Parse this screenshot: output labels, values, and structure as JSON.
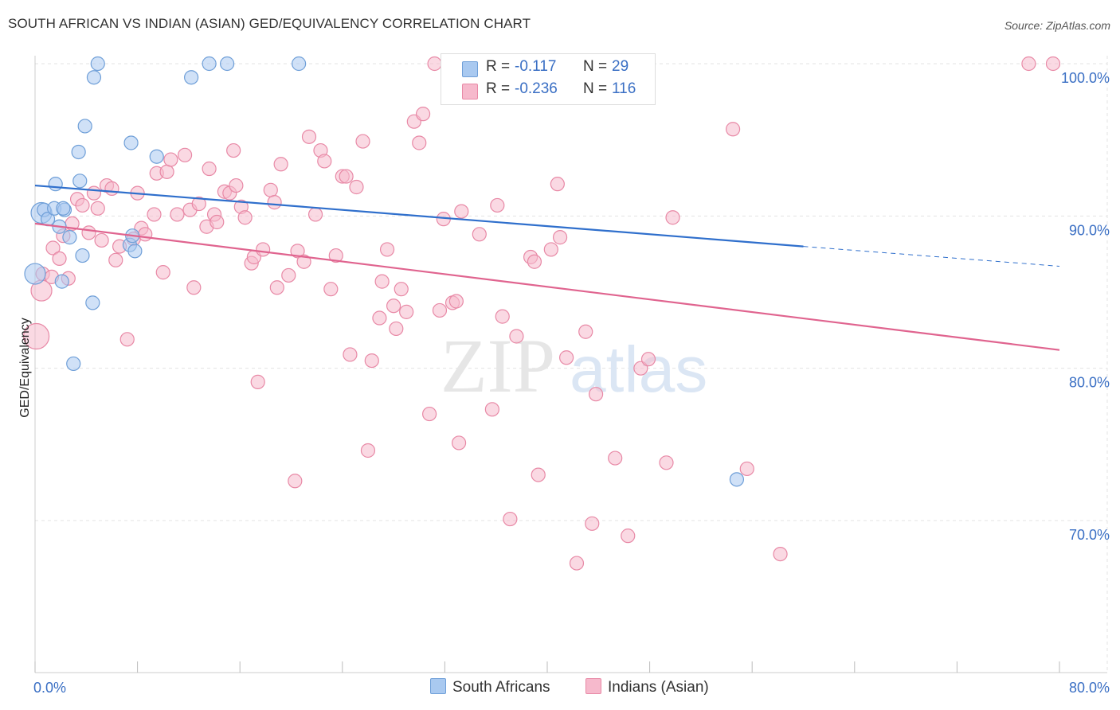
{
  "title": "SOUTH AFRICAN VS INDIAN (ASIAN) GED/EQUIVALENCY CORRELATION CHART",
  "source": "Source: ZipAtlas.com",
  "watermark": {
    "zip": "ZIP",
    "atlas": "atlas"
  },
  "legend": {
    "rows": [
      {
        "r_label": "R =",
        "r_value": "-0.117",
        "n_label": "N =",
        "n_value": "29"
      },
      {
        "r_label": "R =",
        "r_value": "-0.236",
        "n_label": "N =",
        "n_value": "116"
      }
    ]
  },
  "bottom_legend": {
    "south_africans": "South Africans",
    "indians": "Indians (Asian)"
  },
  "colors": {
    "blue_fill": "#a9c9f0",
    "blue_stroke": "#6f9fd8",
    "blue_line": "#2f6fcc",
    "pink_fill": "#f6b9cc",
    "pink_stroke": "#e889a6",
    "pink_line": "#e0648f",
    "axis_text": "#3a6fc4",
    "grid": "#e3e3e3"
  },
  "chart_data": {
    "type": "scatter",
    "title": "SOUTH AFRICAN VS INDIAN (ASIAN) GED/EQUIVALENCY CORRELATION CHART",
    "xlabel": "",
    "ylabel": "GED/Equivalency",
    "xlim": [
      0,
      80
    ],
    "ylim": [
      60,
      101.5
    ],
    "x_tick_labels": [
      "0.0%",
      "80.0%"
    ],
    "y_ticks": [
      70,
      80,
      90,
      100
    ],
    "y_tick_labels": [
      "70.0%",
      "80.0%",
      "90.0%",
      "100.0%"
    ],
    "grid": true,
    "legend_position": "top-center",
    "series": [
      {
        "name": "South Africans",
        "color": "#a9c9f0",
        "r": -0.117,
        "n": 29,
        "trend": {
          "x": [
            0,
            60
          ],
          "y": [
            92.0,
            88.0
          ],
          "dashed_extension_to_x": 80,
          "dashed_end_y": 86.7
        },
        "points": [
          [
            0.0,
            86.2
          ],
          [
            0.5,
            90.2
          ],
          [
            0.7,
            90.4
          ],
          [
            1.0,
            89.8
          ],
          [
            1.5,
            90.5
          ],
          [
            1.6,
            92.1
          ],
          [
            1.9,
            89.3
          ],
          [
            2.1,
            85.7
          ],
          [
            2.3,
            90.4
          ],
          [
            2.7,
            88.6
          ],
          [
            3.4,
            94.2
          ],
          [
            3.5,
            92.3
          ],
          [
            3.7,
            87.4
          ],
          [
            3.9,
            95.9
          ],
          [
            4.5,
            84.3
          ],
          [
            4.6,
            99.1
          ],
          [
            4.9,
            100.0
          ],
          [
            7.4,
            88.1
          ],
          [
            7.5,
            94.8
          ],
          [
            7.6,
            88.7
          ],
          [
            7.8,
            87.7
          ],
          [
            9.5,
            93.9
          ],
          [
            12.2,
            99.1
          ],
          [
            13.6,
            100.0
          ],
          [
            15.0,
            100.0
          ],
          [
            20.6,
            100.0
          ],
          [
            54.8,
            72.7
          ],
          [
            3.0,
            80.3
          ],
          [
            2.2,
            90.5
          ]
        ]
      },
      {
        "name": "Indians (Asian)",
        "color": "#f6b9cc",
        "r": -0.236,
        "n": 116,
        "trend": {
          "x": [
            0,
            80
          ],
          "y": [
            89.5,
            81.2
          ]
        },
        "points": [
          [
            0.1,
            82.1
          ],
          [
            0.5,
            85.1
          ],
          [
            0.6,
            86.2
          ],
          [
            1.3,
            86.0
          ],
          [
            1.4,
            87.9
          ],
          [
            1.9,
            87.2
          ],
          [
            2.2,
            88.7
          ],
          [
            2.6,
            85.9
          ],
          [
            2.9,
            89.5
          ],
          [
            3.3,
            91.1
          ],
          [
            3.7,
            90.7
          ],
          [
            4.2,
            88.9
          ],
          [
            4.6,
            91.5
          ],
          [
            4.9,
            90.5
          ],
          [
            5.2,
            88.4
          ],
          [
            5.6,
            92.0
          ],
          [
            6.0,
            91.8
          ],
          [
            6.3,
            87.1
          ],
          [
            6.6,
            88.0
          ],
          [
            7.2,
            81.9
          ],
          [
            7.7,
            88.5
          ],
          [
            8.0,
            91.5
          ],
          [
            8.3,
            89.2
          ],
          [
            8.6,
            88.8
          ],
          [
            9.3,
            90.1
          ],
          [
            9.5,
            92.8
          ],
          [
            10.0,
            86.3
          ],
          [
            10.3,
            92.9
          ],
          [
            10.6,
            93.7
          ],
          [
            11.1,
            90.1
          ],
          [
            11.7,
            94.0
          ],
          [
            12.1,
            90.4
          ],
          [
            12.4,
            85.3
          ],
          [
            12.8,
            90.8
          ],
          [
            13.4,
            89.3
          ],
          [
            13.6,
            93.1
          ],
          [
            14.0,
            90.1
          ],
          [
            14.2,
            89.6
          ],
          [
            14.8,
            91.6
          ],
          [
            15.2,
            91.5
          ],
          [
            15.5,
            94.3
          ],
          [
            15.7,
            92.0
          ],
          [
            16.1,
            90.6
          ],
          [
            16.4,
            89.9
          ],
          [
            16.9,
            86.9
          ],
          [
            17.1,
            87.3
          ],
          [
            17.4,
            79.1
          ],
          [
            17.8,
            87.8
          ],
          [
            18.4,
            91.7
          ],
          [
            18.7,
            90.9
          ],
          [
            18.9,
            85.3
          ],
          [
            19.2,
            93.4
          ],
          [
            19.8,
            86.1
          ],
          [
            20.3,
            72.6
          ],
          [
            20.5,
            87.7
          ],
          [
            21.0,
            87.0
          ],
          [
            21.4,
            95.2
          ],
          [
            21.9,
            90.1
          ],
          [
            22.3,
            94.3
          ],
          [
            22.6,
            93.6
          ],
          [
            23.1,
            85.2
          ],
          [
            23.5,
            87.4
          ],
          [
            24.0,
            92.6
          ],
          [
            24.3,
            92.6
          ],
          [
            24.6,
            80.9
          ],
          [
            25.1,
            91.9
          ],
          [
            25.6,
            94.9
          ],
          [
            26.0,
            74.6
          ],
          [
            26.3,
            80.5
          ],
          [
            26.9,
            83.3
          ],
          [
            27.1,
            85.7
          ],
          [
            27.5,
            87.8
          ],
          [
            28.0,
            84.1
          ],
          [
            28.2,
            82.6
          ],
          [
            28.6,
            85.2
          ],
          [
            29.0,
            83.7
          ],
          [
            29.6,
            96.2
          ],
          [
            30.0,
            94.8
          ],
          [
            30.3,
            96.7
          ],
          [
            30.8,
            77.0
          ],
          [
            31.2,
            100.0
          ],
          [
            31.6,
            83.8
          ],
          [
            31.9,
            89.8
          ],
          [
            32.6,
            84.3
          ],
          [
            32.9,
            84.4
          ],
          [
            33.1,
            75.1
          ],
          [
            33.3,
            90.3
          ],
          [
            34.7,
            88.8
          ],
          [
            35.7,
            77.3
          ],
          [
            36.1,
            90.7
          ],
          [
            36.5,
            83.4
          ],
          [
            37.1,
            70.1
          ],
          [
            37.6,
            82.1
          ],
          [
            38.7,
            87.3
          ],
          [
            39.0,
            87.0
          ],
          [
            39.3,
            73.0
          ],
          [
            40.3,
            87.8
          ],
          [
            40.8,
            92.1
          ],
          [
            41.0,
            88.6
          ],
          [
            41.5,
            80.7
          ],
          [
            42.3,
            67.2
          ],
          [
            43.0,
            82.4
          ],
          [
            43.5,
            69.8
          ],
          [
            43.8,
            78.3
          ],
          [
            45.3,
            74.1
          ],
          [
            46.3,
            69.0
          ],
          [
            46.9,
            100.0
          ],
          [
            47.3,
            80.0
          ],
          [
            47.9,
            80.6
          ],
          [
            49.3,
            73.8
          ],
          [
            49.8,
            89.9
          ],
          [
            54.5,
            95.7
          ],
          [
            55.6,
            73.4
          ],
          [
            58.2,
            67.8
          ],
          [
            77.6,
            100.0
          ],
          [
            79.5,
            100.0
          ]
        ]
      }
    ]
  }
}
